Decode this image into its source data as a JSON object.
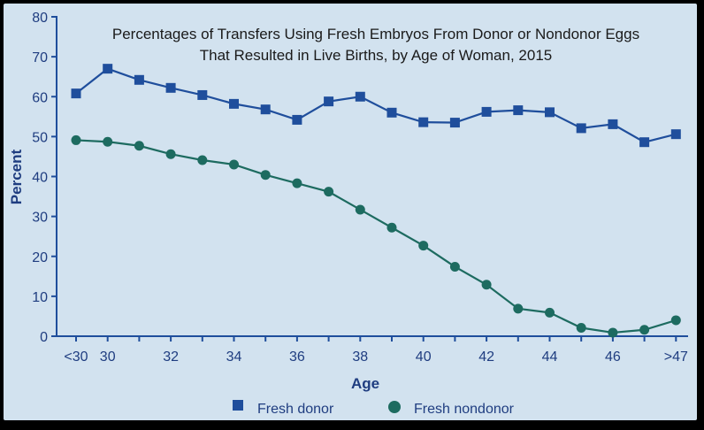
{
  "chart_data": {
    "type": "line",
    "title_line1": "Percentages of Transfers Using Fresh Embryos From Donor or Nondonor Eggs",
    "title_line2": "That Resulted in Live Births, by Age of Woman, 2015",
    "xlabel": "Age",
    "ylabel": "Percent",
    "ylim": [
      0,
      80
    ],
    "yticks": [
      "0",
      "10",
      "20",
      "30",
      "40",
      "50",
      "60",
      "70",
      "80"
    ],
    "x_categories": [
      "<30",
      "30",
      "31",
      "32",
      "33",
      "34",
      "35",
      "36",
      "37",
      "38",
      "39",
      "40",
      "41",
      "42",
      "43",
      "44",
      "45",
      "46",
      "47",
      ">47"
    ],
    "xtick_labels": [
      "<30",
      "30",
      "32",
      "34",
      "36",
      "38",
      "40",
      "42",
      "44",
      "46",
      ">47"
    ],
    "grid": false,
    "legend_position": "bottom",
    "series": [
      {
        "name": "Fresh donor",
        "marker": "square",
        "color": "#1f4e9c",
        "values": [
          60.8,
          67.0,
          64.2,
          62.2,
          60.4,
          58.2,
          56.8,
          54.2,
          58.8,
          60.0,
          56.0,
          53.6,
          53.5,
          56.2,
          56.6,
          56.1,
          52.1,
          53.1,
          48.6,
          50.6
        ]
      },
      {
        "name": "Fresh nondonor",
        "marker": "circle",
        "color": "#1d6b60",
        "values": [
          49.1,
          48.7,
          47.7,
          45.6,
          44.1,
          43.0,
          40.4,
          38.3,
          36.2,
          31.7,
          27.2,
          22.7,
          17.4,
          12.9,
          6.9,
          5.9,
          2.1,
          0.9,
          1.6,
          4.0
        ]
      }
    ]
  },
  "colors": {
    "plot_background": "#d2e2ef",
    "axis": "#1f4e9c",
    "text": "#1f3d80",
    "frame": "#000000"
  }
}
